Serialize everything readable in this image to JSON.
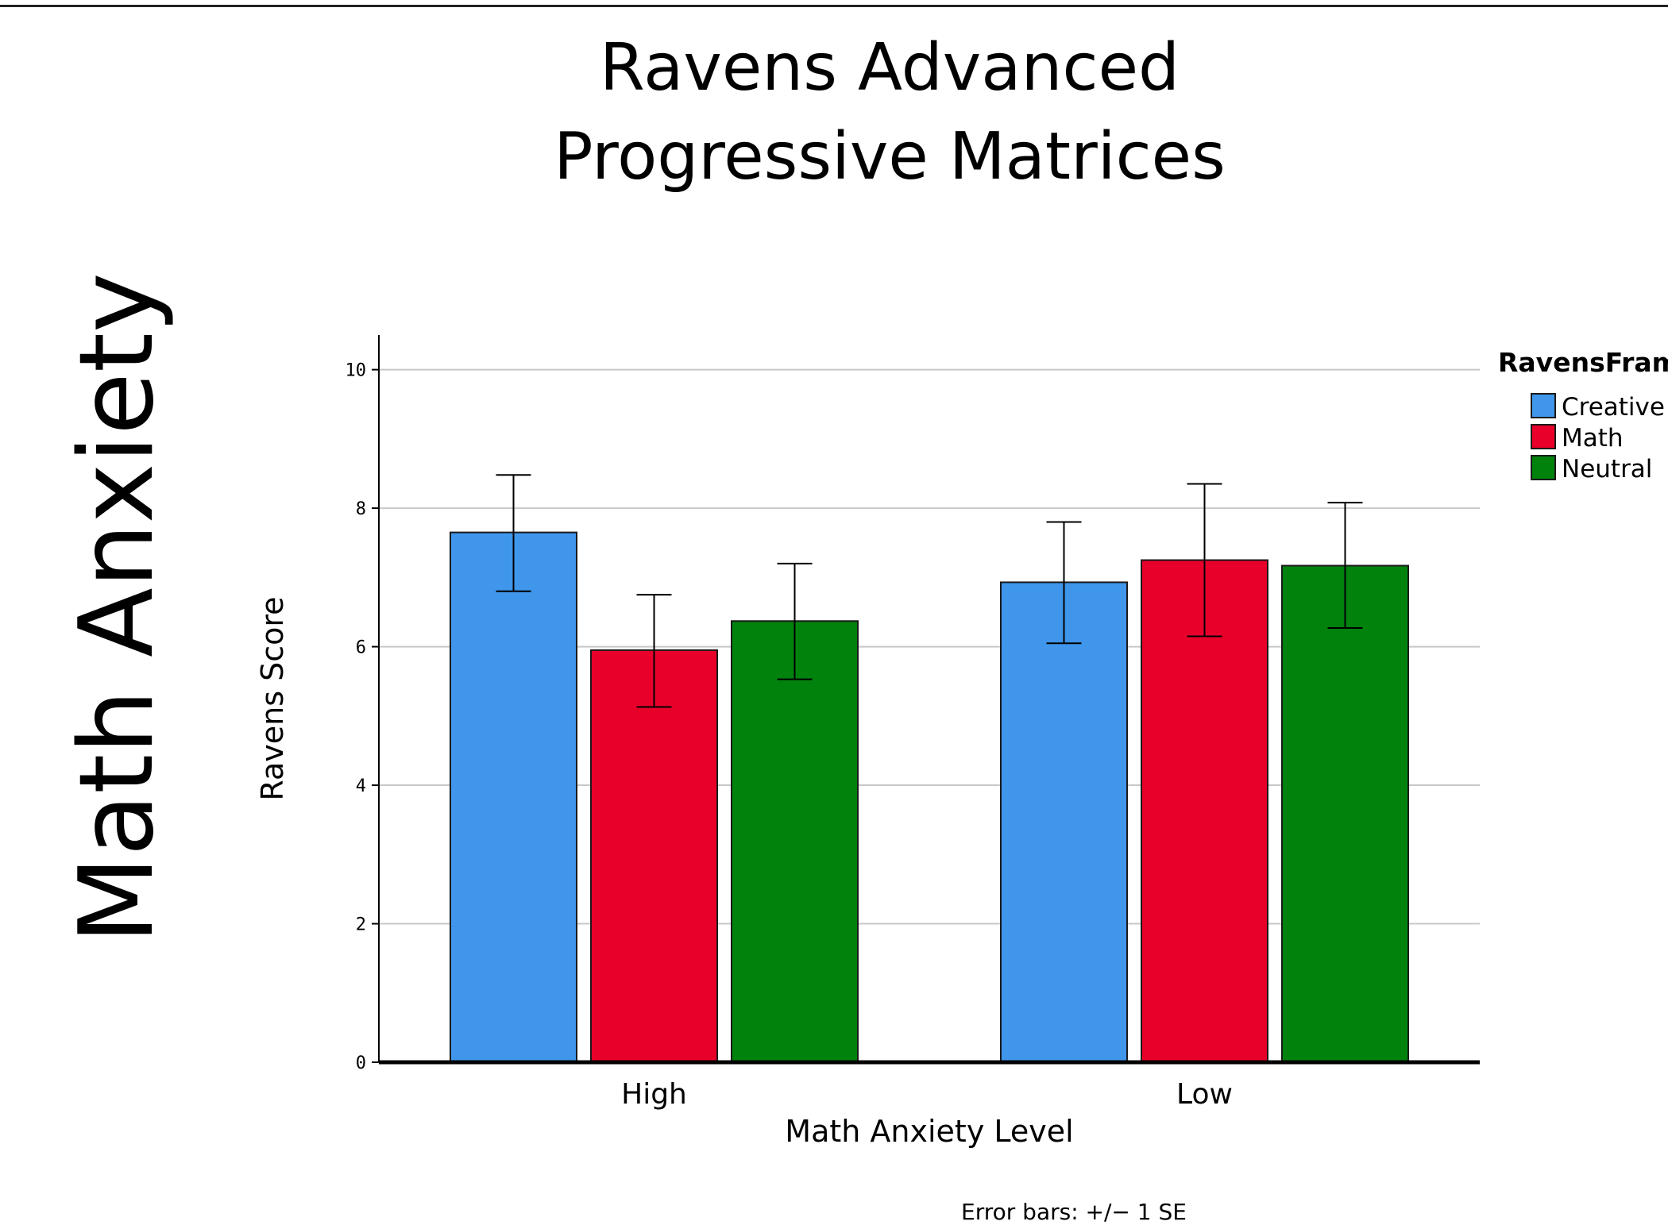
{
  "slide": {
    "title_line1": "Ravens Advanced",
    "title_line2": "Progressive Matrices",
    "side_title": "Math Anxiety"
  },
  "chart_data": {
    "type": "bar",
    "xlabel": "Math Anxiety Level",
    "ylabel": "Ravens Score",
    "categories": [
      "High",
      "Low"
    ],
    "ylim": [
      0,
      10.5
    ],
    "yticks": [
      0,
      2,
      4,
      6,
      8,
      10
    ],
    "grid": true,
    "legend": {
      "title": "RavensFram",
      "placement": "right"
    },
    "series": [
      {
        "name": "Creative",
        "color": "#3f96eb",
        "values": [
          7.65,
          6.93
        ],
        "err_low": [
          6.8,
          6.05
        ],
        "err_high": [
          8.48,
          7.8
        ]
      },
      {
        "name": "Math",
        "color": "#e8002a",
        "values": [
          5.95,
          7.25
        ],
        "err_low": [
          5.13,
          6.15
        ],
        "err_high": [
          6.75,
          8.35
        ]
      },
      {
        "name": "Neutral",
        "color": "#00820d",
        "values": [
          6.37,
          7.17
        ],
        "err_low": [
          5.53,
          6.27
        ],
        "err_high": [
          7.2,
          8.08
        ]
      }
    ],
    "footnote": "Error bars: +/− 1 SE"
  }
}
